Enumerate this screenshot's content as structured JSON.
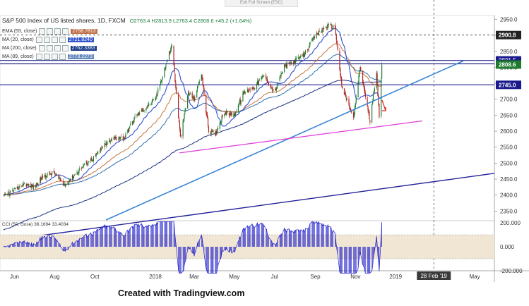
{
  "window": {
    "exit_label": "Exit Full Screen (ESC)"
  },
  "header": {
    "title": "S&P 500 Index of US listed shares, 1D, FXCM",
    "ohlc": "O2763.4  H2813.9  L2763.4  C2808.6  +45.2 (+1.64%)"
  },
  "credit": "Created with Tradingview.com",
  "indicators": [
    {
      "label": "EMA (55, close)",
      "value": "2758.7813",
      "color": "#c0704a"
    },
    {
      "label": "MA (20, close)",
      "value": "2721.8240",
      "color": "#3355cc"
    },
    {
      "label": "MA (200, close)",
      "value": "2762.3383",
      "color": "#1a3a8a"
    },
    {
      "label": "MA (89, close)",
      "value": "2773.2273",
      "color": "#6688bb"
    }
  ],
  "oscillator": {
    "label": "CCI (50, close)",
    "value1": "38.1694",
    "value2": "33.4034"
  },
  "colors": {
    "candle_up": "#1e7a2e",
    "candle_down": "#b22222",
    "ema55": "#c8743e",
    "ma20": "#2f4fd0",
    "ma200": "#1a2f80",
    "ma89": "#2f6fb0",
    "trend_blue": "#3a86d8",
    "trend_navy": "#20209a",
    "trend_magenta": "#e03ad8",
    "hline": "#1a1a8c",
    "cci": "#2222cc",
    "cci_band": "#f1e6d4"
  },
  "chart_data": {
    "type": "candlestick",
    "x_ticks": [
      "Jun",
      "Aug",
      "Oct",
      "2018",
      "Mar",
      "May",
      "Jul",
      "Sep",
      "Nov",
      "2019",
      "28 Feb '19",
      "May"
    ],
    "y_ticks": [
      2350,
      2400,
      2450,
      2500,
      2550,
      2600,
      2650,
      2700,
      2750,
      2800,
      2850,
      2900,
      2950
    ],
    "price_labels": [
      {
        "value": 2900.8,
        "text": "2900.8",
        "bg": "#222222"
      },
      {
        "value": 2821.5,
        "text": "2821.5",
        "bg": "#1a1a8c"
      },
      {
        "value": 2810.6,
        "text": "2810.6",
        "bg": "#1a1a8c"
      },
      {
        "value": 2808.6,
        "text": "2808.6",
        "bg": "#1e7a2e"
      },
      {
        "value": 2745.0,
        "text": "2745.0",
        "bg": "#1a1a8c"
      }
    ],
    "horizontal_levels": [
      2821.5,
      2810.6,
      2745.0
    ],
    "dashed_level": 2900.8,
    "price_path": [
      [
        "2017-05-15",
        2395
      ],
      [
        "2017-06-01",
        2415
      ],
      [
        "2017-06-15",
        2435
      ],
      [
        "2017-07-01",
        2425
      ],
      [
        "2017-07-15",
        2460
      ],
      [
        "2017-08-01",
        2470
      ],
      [
        "2017-08-15",
        2430
      ],
      [
        "2017-09-01",
        2465
      ],
      [
        "2017-09-15",
        2495
      ],
      [
        "2017-10-01",
        2520
      ],
      [
        "2017-10-15",
        2555
      ],
      [
        "2017-11-01",
        2580
      ],
      [
        "2017-11-15",
        2580
      ],
      [
        "2017-12-01",
        2645
      ],
      [
        "2017-12-15",
        2670
      ],
      [
        "2018-01-01",
        2700
      ],
      [
        "2018-01-15",
        2795
      ],
      [
        "2018-01-26",
        2870
      ],
      [
        "2018-02-08",
        2580
      ],
      [
        "2018-02-20",
        2720
      ],
      [
        "2018-03-01",
        2700
      ],
      [
        "2018-03-12",
        2780
      ],
      [
        "2018-03-23",
        2600
      ],
      [
        "2018-04-02",
        2590
      ],
      [
        "2018-04-15",
        2660
      ],
      [
        "2018-05-01",
        2650
      ],
      [
        "2018-05-15",
        2720
      ],
      [
        "2018-06-01",
        2740
      ],
      [
        "2018-06-15",
        2775
      ],
      [
        "2018-07-01",
        2720
      ],
      [
        "2018-07-15",
        2800
      ],
      [
        "2018-08-01",
        2820
      ],
      [
        "2018-08-15",
        2840
      ],
      [
        "2018-09-01",
        2900
      ],
      [
        "2018-09-20",
        2930
      ],
      [
        "2018-10-01",
        2925
      ],
      [
        "2018-10-11",
        2740
      ],
      [
        "2018-10-29",
        2640
      ],
      [
        "2018-11-08",
        2800
      ],
      [
        "2018-11-23",
        2630
      ],
      [
        "2018-12-03",
        2790
      ],
      [
        "2018-12-07",
        2640
      ],
      [
        "2018-12-11",
        2808.6
      ]
    ],
    "highs_lows": {
      "high": 2940,
      "low": 2532
    },
    "cci_ticks": [
      200,
      0,
      -200
    ]
  }
}
